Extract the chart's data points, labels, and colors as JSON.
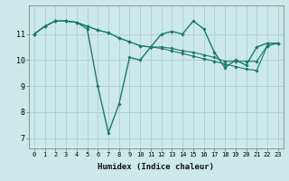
{
  "xlabel": "Humidex (Indice chaleur)",
  "ylabel": "",
  "bg_color": "#cce8e8",
  "grid_color": "#aed0d0",
  "line_color": "#1a7a6a",
  "xlim": [
    -0.5,
    23.5
  ],
  "ylim": [
    6.6,
    12.1
  ],
  "yticks": [
    7,
    8,
    9,
    10,
    11
  ],
  "xticks": [
    0,
    1,
    2,
    3,
    4,
    5,
    6,
    7,
    8,
    9,
    10,
    11,
    12,
    13,
    14,
    15,
    16,
    17,
    18,
    19,
    20,
    21,
    22,
    23
  ],
  "series": [
    [
      11.0,
      11.3,
      11.5,
      11.5,
      11.45,
      11.2,
      9.0,
      7.2,
      8.3,
      10.1,
      10.0,
      10.5,
      11.0,
      11.1,
      11.0,
      11.5,
      11.2,
      10.3,
      9.7,
      10.0,
      9.8,
      10.5,
      10.65,
      10.65
    ],
    [
      11.0,
      11.3,
      11.5,
      11.5,
      11.45,
      11.3,
      11.15,
      11.05,
      10.85,
      10.7,
      10.55,
      10.5,
      10.45,
      10.35,
      10.25,
      10.15,
      10.05,
      9.95,
      9.85,
      9.75,
      9.65,
      9.6,
      10.55,
      10.65
    ],
    [
      11.0,
      11.3,
      11.5,
      11.5,
      11.45,
      11.3,
      11.15,
      11.05,
      10.85,
      10.7,
      10.55,
      10.5,
      10.5,
      10.45,
      10.35,
      10.3,
      10.2,
      10.1,
      9.95,
      9.95,
      9.95,
      9.95,
      10.55,
      10.65
    ]
  ]
}
